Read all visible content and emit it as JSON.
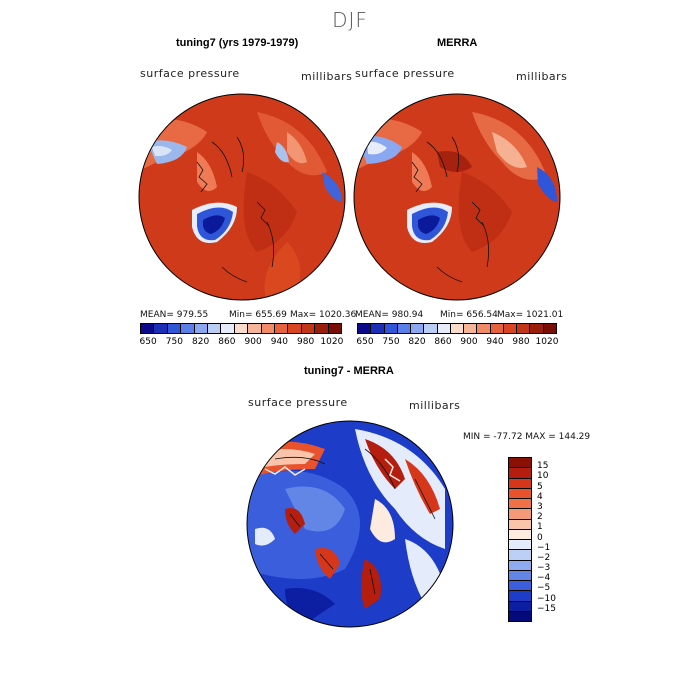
{
  "main_title": "DJF",
  "panel1": {
    "title": "tuning7 (yrs 1979-1979)",
    "field_label": "surface pressure",
    "units_label": "millibars",
    "mean": "MEAN= 979.55",
    "min": "Min= 655.69",
    "max": "Max= 1020.36"
  },
  "panel2": {
    "title": "MERRA",
    "field_label": "surface pressure",
    "units_label": "millibars",
    "mean": "MEAN= 980.94",
    "min": "Min= 656.54",
    "max": "Max= 1021.01"
  },
  "panel3": {
    "title": "tuning7 - MERRA",
    "field_label": "surface pressure",
    "units_label": "millibars",
    "minmax": "MIN = -77.72 MAX = 144.29"
  },
  "colorbar_top": {
    "ticks": [
      "650",
      "750",
      "820",
      "860",
      "900",
      "940",
      "980",
      "1020"
    ],
    "colors": [
      "#0a0a8a",
      "#1a2fb5",
      "#2f55d8",
      "#5a7fe8",
      "#8aa8f0",
      "#b9cdf5",
      "#e6ecfa",
      "#fbdccb",
      "#f6b597",
      "#f18a66",
      "#e8613d",
      "#d94422",
      "#c23516",
      "#9a1e0c",
      "#7a0d05"
    ]
  },
  "colorbar_diff": {
    "ticks": [
      "15",
      "10",
      "5",
      "4",
      "3",
      "2",
      "1",
      "0",
      "−1",
      "−2",
      "−3",
      "−4",
      "−5",
      "−10",
      "−15"
    ],
    "colors": [
      "#8a0f05",
      "#b51d0e",
      "#d6361a",
      "#e8522c",
      "#f07048",
      "#f59a78",
      "#f9c4aa",
      "#fdebe0",
      "#e4ecfb",
      "#bcd0f5",
      "#8eaaf0",
      "#6286e6",
      "#3b5fdc",
      "#1d3cc8",
      "#0c1ea2",
      "#050a7a"
    ]
  }
}
